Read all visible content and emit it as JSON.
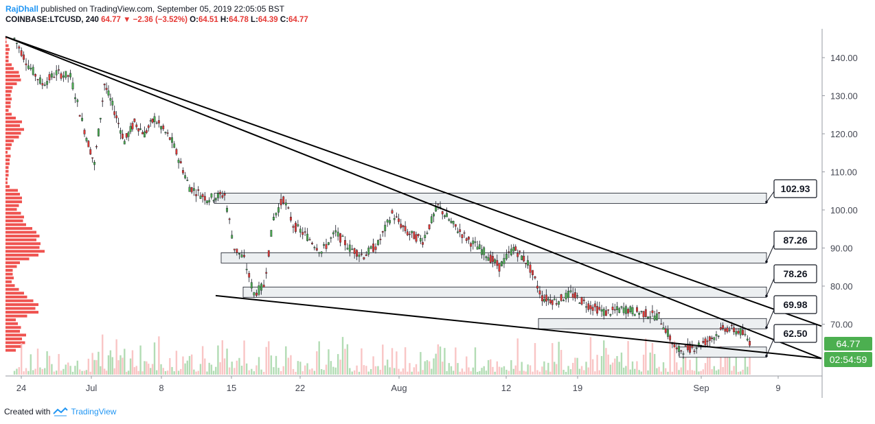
{
  "header": {
    "author": "RajDhall",
    "published": "published on TradingView.com, September 05, 2019 22:05:05 BST",
    "symbol": "COINBASE:LTCUSD, 240",
    "last": "64.77",
    "arrow": "▼",
    "change": "−2.36 (−3.52%)",
    "o_label": "O:",
    "o_value": "64.51",
    "h_label": "H:",
    "h_value": "64.78",
    "l_label": "L:",
    "l_value": "64.39",
    "c_label": "C:",
    "c_value": "64.77"
  },
  "footer": {
    "created_with": "Created with",
    "brand": "TradingView"
  },
  "price_badge": {
    "value": "64.77",
    "color": "#4caf50"
  },
  "countdown_badge": {
    "value": "02:54:59",
    "color": "#4caf50"
  },
  "colors": {
    "up": "#4caf50",
    "down": "#e53935",
    "volume_profile": "#ef5350",
    "zone_fill": "#eceff1",
    "trendline": "#000000"
  },
  "chart_data": {
    "type": "candlestick",
    "symbol": "COINBASE:LTCUSD",
    "timeframe": "240",
    "y_axis": {
      "ticks": [
        70,
        80,
        90,
        100,
        110,
        120,
        130,
        140
      ],
      "tick_labels": [
        "70.00",
        "80.00",
        "90.00",
        "100.00",
        "110.00",
        "120.00",
        "130.00",
        "140.00"
      ],
      "range": [
        61,
        148
      ],
      "position": "right"
    },
    "x_axis": {
      "tick_labels": [
        "24",
        "Jul",
        "8",
        "15",
        "22",
        "Aug",
        "12",
        "19",
        "Sep",
        "9"
      ]
    },
    "price_path": [
      [
        "24",
        145
      ],
      [
        "24",
        138
      ],
      [
        "24",
        133
      ],
      [
        "24",
        136
      ],
      [
        "24",
        135
      ],
      [
        "Jul",
        121
      ],
      [
        "Jul",
        112
      ],
      [
        "Jul",
        133
      ],
      [
        "Jul",
        126
      ],
      [
        "Jul",
        118
      ],
      [
        "Jul",
        123
      ],
      [
        "Jul",
        120
      ],
      [
        "8",
        124
      ],
      [
        "8",
        118
      ],
      [
        "8",
        106
      ],
      [
        "8",
        103
      ],
      [
        "15",
        104
      ],
      [
        "15",
        90
      ],
      [
        "15",
        87
      ],
      [
        "15",
        78
      ],
      [
        "15",
        80
      ],
      [
        "15",
        98
      ],
      [
        "15",
        103
      ],
      [
        "22",
        96
      ],
      [
        "22",
        93
      ],
      [
        "22",
        89
      ],
      [
        "22",
        94
      ],
      [
        "22",
        90
      ],
      [
        "22",
        88
      ],
      [
        "22",
        91
      ],
      [
        "Aug",
        99
      ],
      [
        "Aug",
        94
      ],
      [
        "Aug",
        92
      ],
      [
        "Aug",
        101
      ],
      [
        "Aug",
        96
      ],
      [
        "Aug",
        92
      ],
      [
        "Aug",
        89
      ],
      [
        "12",
        85
      ],
      [
        "12",
        90
      ],
      [
        "12",
        86
      ],
      [
        "12",
        77
      ],
      [
        "12",
        76
      ],
      [
        "19",
        78
      ],
      [
        "19",
        75
      ],
      [
        "19",
        73
      ],
      [
        "19",
        74
      ],
      [
        "19",
        73
      ],
      [
        "19",
        72
      ],
      [
        "19",
        63
      ],
      [
        "Sep",
        64
      ],
      [
        "Sep",
        66
      ],
      [
        "Sep",
        69
      ],
      [
        "Sep",
        68
      ],
      [
        "Sep",
        64.77
      ]
    ],
    "levels": [
      {
        "label": "102.93",
        "value": 102.93
      },
      {
        "label": "87.26",
        "value": 87.26
      },
      {
        "label": "78.26",
        "value": 78.26
      },
      {
        "label": "69.98",
        "value": 69.98
      },
      {
        "label": "62.50",
        "value": 62.5
      }
    ],
    "trendlines": [
      {
        "from": [
          "24",
          145.5
        ],
        "to": [
          "9",
          69.5
        ]
      },
      {
        "from": [
          "24",
          145.5
        ],
        "to": [
          "9",
          61
        ]
      },
      {
        "from": [
          "15",
          77.5
        ],
        "to": [
          "9",
          61
        ]
      }
    ],
    "grid": false,
    "legend": "none"
  }
}
